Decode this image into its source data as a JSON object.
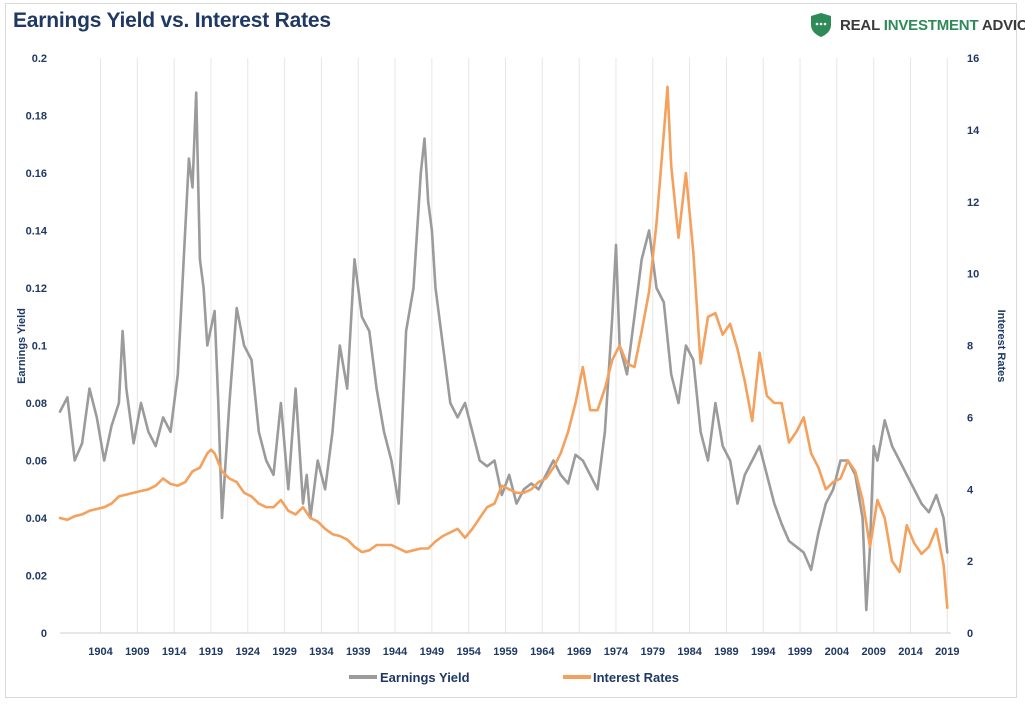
{
  "header": {
    "title": "Earnings Yield vs. Interest Rates",
    "brand_part1": "REAL ",
    "brand_part2": "INVESTMENT",
    "brand_part3": " ADVICE",
    "brand_icon": "shield-icon"
  },
  "colors": {
    "earnings": "#9b9b9b",
    "rates": "#f4a15d",
    "grid": "#e6e6e6",
    "text": "#1f3864",
    "brand_green": "#2e8b57"
  },
  "chart_data": {
    "type": "line",
    "title": "Earnings Yield vs. Interest Rates",
    "xlabel": "",
    "ylabel": "Earnings Yield",
    "y2label": "Interest Rates",
    "xlim": [
      1899,
      2020
    ],
    "ylim": [
      0,
      0.2
    ],
    "y2lim": [
      0,
      16
    ],
    "x_ticks": [
      1904,
      1909,
      1914,
      1919,
      1924,
      1929,
      1934,
      1939,
      1944,
      1949,
      1954,
      1959,
      1964,
      1969,
      1974,
      1979,
      1984,
      1989,
      1994,
      1999,
      2004,
      2009,
      2014,
      2019
    ],
    "y_ticks": [
      "0",
      "0.02",
      "0.04",
      "0.06",
      "0.08",
      "0.1",
      "0.12",
      "0.14",
      "0.16",
      "0.18",
      "0.2"
    ],
    "y2_ticks": [
      "0",
      "2",
      "4",
      "6",
      "8",
      "10",
      "12",
      "14",
      "16"
    ],
    "grid": "vertical",
    "legend": "bottom",
    "series": [
      {
        "name": "Earnings Yield",
        "axis": "left",
        "x": [
          1899,
          1900,
          1901,
          1902,
          1903,
          1904,
          1905,
          1906,
          1907,
          1907.5,
          1908,
          1909,
          1910,
          1911,
          1912,
          1913,
          1914,
          1915,
          1916,
          1916.5,
          1917,
          1917.5,
          1918,
          1918.5,
          1919,
          1920,
          1920.5,
          1921,
          1921.5,
          1922,
          1923,
          1924,
          1925,
          1926,
          1927,
          1928,
          1929,
          1930,
          1931,
          1932,
          1932.5,
          1933,
          1934,
          1935,
          1936,
          1937,
          1938,
          1939,
          1940,
          1941,
          1942,
          1943,
          1944,
          1945,
          1946,
          1947,
          1948,
          1948.5,
          1949,
          1949.5,
          1950,
          1951,
          1952,
          1953,
          1954,
          1955,
          1956,
          1957,
          1958,
          1959,
          1960,
          1961,
          1962,
          1963,
          1964,
          1965,
          1966,
          1967,
          1968,
          1969,
          1970,
          1971,
          1972,
          1973,
          1974,
          1974.5,
          1975,
          1976,
          1977,
          1978,
          1979,
          1980,
          1981,
          1982,
          1983,
          1984,
          1985,
          1986,
          1987,
          1988,
          1989,
          1990,
          1991,
          1992,
          1993,
          1994,
          1995,
          1996,
          1997,
          1998,
          1999,
          2000,
          2001,
          2002,
          2003,
          2004,
          2005,
          2006,
          2007,
          2008,
          2008.5,
          2009,
          2009.5,
          2010,
          2011,
          2012,
          2013,
          2014,
          2015,
          2016,
          2017,
          2018,
          2019,
          2019.5
        ],
        "y": [
          0.077,
          0.082,
          0.06,
          0.066,
          0.085,
          0.075,
          0.06,
          0.072,
          0.08,
          0.105,
          0.085,
          0.066,
          0.08,
          0.07,
          0.065,
          0.075,
          0.07,
          0.09,
          0.14,
          0.165,
          0.155,
          0.188,
          0.13,
          0.12,
          0.1,
          0.112,
          0.08,
          0.04,
          0.06,
          0.08,
          0.113,
          0.1,
          0.095,
          0.07,
          0.06,
          0.055,
          0.08,
          0.05,
          0.085,
          0.045,
          0.055,
          0.04,
          0.06,
          0.05,
          0.07,
          0.1,
          0.085,
          0.13,
          0.11,
          0.105,
          0.085,
          0.07,
          0.06,
          0.045,
          0.105,
          0.12,
          0.16,
          0.172,
          0.15,
          0.14,
          0.12,
          0.1,
          0.08,
          0.075,
          0.08,
          0.07,
          0.06,
          0.058,
          0.06,
          0.048,
          0.055,
          0.045,
          0.05,
          0.052,
          0.05,
          0.055,
          0.06,
          0.055,
          0.052,
          0.062,
          0.06,
          0.055,
          0.05,
          0.07,
          0.11,
          0.135,
          0.1,
          0.09,
          0.11,
          0.13,
          0.14,
          0.12,
          0.115,
          0.09,
          0.08,
          0.1,
          0.095,
          0.07,
          0.06,
          0.08,
          0.065,
          0.06,
          0.045,
          0.055,
          0.06,
          0.065,
          0.055,
          0.045,
          0.038,
          0.032,
          0.03,
          0.028,
          0.022,
          0.035,
          0.045,
          0.05,
          0.06,
          0.06,
          0.055,
          0.04,
          0.008,
          0.03,
          0.065,
          0.06,
          0.074,
          0.065,
          0.06,
          0.055,
          0.05,
          0.045,
          0.042,
          0.048,
          0.04,
          0.028
        ]
      },
      {
        "name": "Interest Rates",
        "axis": "right",
        "x": [
          1899,
          1900,
          1901,
          1902,
          1903,
          1904,
          1905,
          1906,
          1907,
          1908,
          1909,
          1910,
          1911,
          1912,
          1913,
          1914,
          1915,
          1916,
          1917,
          1918,
          1919,
          1919.5,
          1920,
          1921,
          1922,
          1923,
          1924,
          1925,
          1926,
          1927,
          1928,
          1929,
          1930,
          1931,
          1932,
          1933,
          1934,
          1935,
          1936,
          1937,
          1938,
          1939,
          1940,
          1941,
          1942,
          1943,
          1944,
          1945,
          1946,
          1947,
          1948,
          1949,
          1950,
          1951,
          1952,
          1953,
          1954,
          1955,
          1956,
          1957,
          1958,
          1959,
          1960,
          1961,
          1962,
          1963,
          1964,
          1965,
          1966,
          1967,
          1968,
          1969,
          1970,
          1971,
          1972,
          1973,
          1974,
          1975,
          1976,
          1977,
          1978,
          1979,
          1980,
          1981,
          1981.5,
          1982,
          1983,
          1984,
          1985,
          1986,
          1987,
          1988,
          1989,
          1990,
          1991,
          1992,
          1993,
          1994,
          1995,
          1996,
          1997,
          1998,
          1999,
          2000,
          2001,
          2002,
          2003,
          2004,
          2005,
          2006,
          2007,
          2008,
          2009,
          2010,
          2011,
          2012,
          2013,
          2014,
          2015,
          2016,
          2017,
          2018,
          2019,
          2019.5
        ],
        "y": [
          3.2,
          3.15,
          3.25,
          3.3,
          3.4,
          3.45,
          3.5,
          3.6,
          3.8,
          3.85,
          3.9,
          3.95,
          4.0,
          4.1,
          4.3,
          4.15,
          4.1,
          4.2,
          4.5,
          4.6,
          5.0,
          5.1,
          5.0,
          4.5,
          4.3,
          4.2,
          3.9,
          3.8,
          3.6,
          3.5,
          3.5,
          3.7,
          3.4,
          3.3,
          3.5,
          3.2,
          3.1,
          2.9,
          2.75,
          2.7,
          2.6,
          2.4,
          2.25,
          2.3,
          2.45,
          2.45,
          2.45,
          2.35,
          2.25,
          2.3,
          2.35,
          2.35,
          2.55,
          2.7,
          2.8,
          2.9,
          2.65,
          2.9,
          3.2,
          3.5,
          3.6,
          4.1,
          4.0,
          3.9,
          3.9,
          4.0,
          4.2,
          4.3,
          4.6,
          5.0,
          5.6,
          6.4,
          7.4,
          6.2,
          6.2,
          6.8,
          7.6,
          8.0,
          7.5,
          7.4,
          8.4,
          9.5,
          11.4,
          13.9,
          15.2,
          13.0,
          11.0,
          12.8,
          10.6,
          7.5,
          8.8,
          8.9,
          8.3,
          8.6,
          7.9,
          7.0,
          5.9,
          7.8,
          6.6,
          6.4,
          6.4,
          5.3,
          5.6,
          6.0,
          5.0,
          4.6,
          4.0,
          4.2,
          4.3,
          4.8,
          4.5,
          3.7,
          2.4,
          3.7,
          3.2,
          2.0,
          1.7,
          3.0,
          2.5,
          2.2,
          2.4,
          2.9,
          1.9,
          0.7
        ]
      }
    ]
  },
  "legend": {
    "earnings_label": "Earnings Yield",
    "rates_label": "Interest Rates"
  }
}
